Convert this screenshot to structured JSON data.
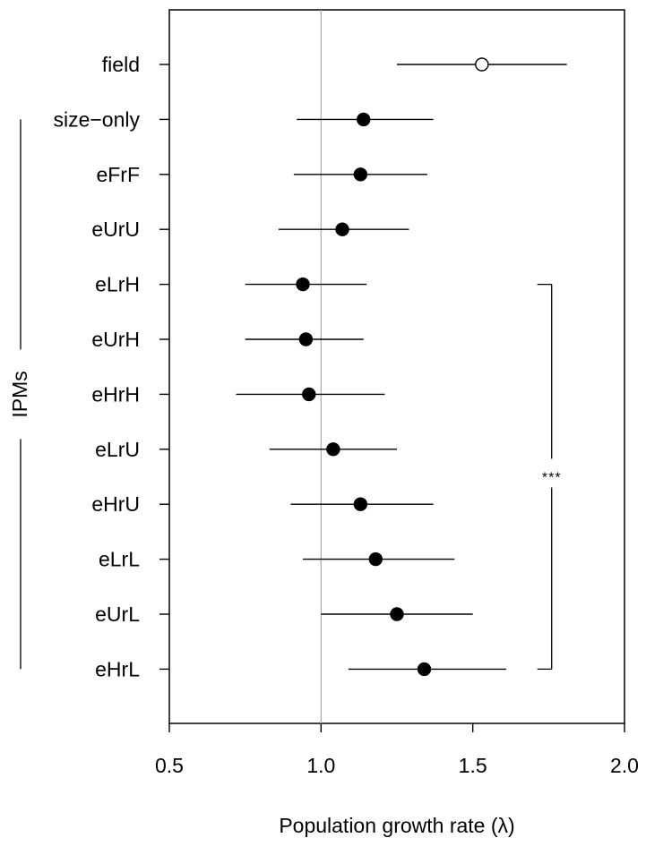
{
  "chart_data": {
    "type": "scatter",
    "subtype": "forest-plot",
    "orientation": "horizontal",
    "xlabel": "Population growth rate (λ)",
    "xlim": [
      0.5,
      2.0
    ],
    "xticks": [
      "0.5",
      "1.0",
      "1.5",
      "2.0"
    ],
    "reference_line": 1.0,
    "categories": [
      "field",
      "size−only",
      "eFrF",
      "eUrU",
      "eLrH",
      "eUrH",
      "eHrH",
      "eLrU",
      "eHrU",
      "eLrL",
      "eUrL",
      "eHrL"
    ],
    "points": [
      {
        "label": "field",
        "value": 1.53,
        "lower": 1.25,
        "upper": 1.81,
        "marker": "open"
      },
      {
        "label": "size−only",
        "value": 1.14,
        "lower": 0.92,
        "upper": 1.37,
        "marker": "filled"
      },
      {
        "label": "eFrF",
        "value": 1.13,
        "lower": 0.91,
        "upper": 1.35,
        "marker": "filled"
      },
      {
        "label": "eUrU",
        "value": 1.07,
        "lower": 0.86,
        "upper": 1.29,
        "marker": "filled"
      },
      {
        "label": "eLrH",
        "value": 0.94,
        "lower": 0.75,
        "upper": 1.15,
        "marker": "filled"
      },
      {
        "label": "eUrH",
        "value": 0.95,
        "lower": 0.75,
        "upper": 1.14,
        "marker": "filled"
      },
      {
        "label": "eHrH",
        "value": 0.96,
        "lower": 0.72,
        "upper": 1.21,
        "marker": "filled"
      },
      {
        "label": "eLrU",
        "value": 1.04,
        "lower": 0.83,
        "upper": 1.25,
        "marker": "filled"
      },
      {
        "label": "eHrU",
        "value": 1.13,
        "lower": 0.9,
        "upper": 1.37,
        "marker": "filled"
      },
      {
        "label": "eLrL",
        "value": 1.18,
        "lower": 0.94,
        "upper": 1.44,
        "marker": "filled"
      },
      {
        "label": "eUrL",
        "value": 1.25,
        "lower": 1.0,
        "upper": 1.5,
        "marker": "filled"
      },
      {
        "label": "eHrL",
        "value": 1.34,
        "lower": 1.09,
        "upper": 1.61,
        "marker": "filled"
      }
    ],
    "group_bracket": {
      "label": "IPMs",
      "from": "size−only",
      "to": "eHrL"
    },
    "significance_bracket": {
      "label": "***",
      "from": "eLrH",
      "to": "eHrL",
      "x": 1.76
    },
    "grid": false
  }
}
